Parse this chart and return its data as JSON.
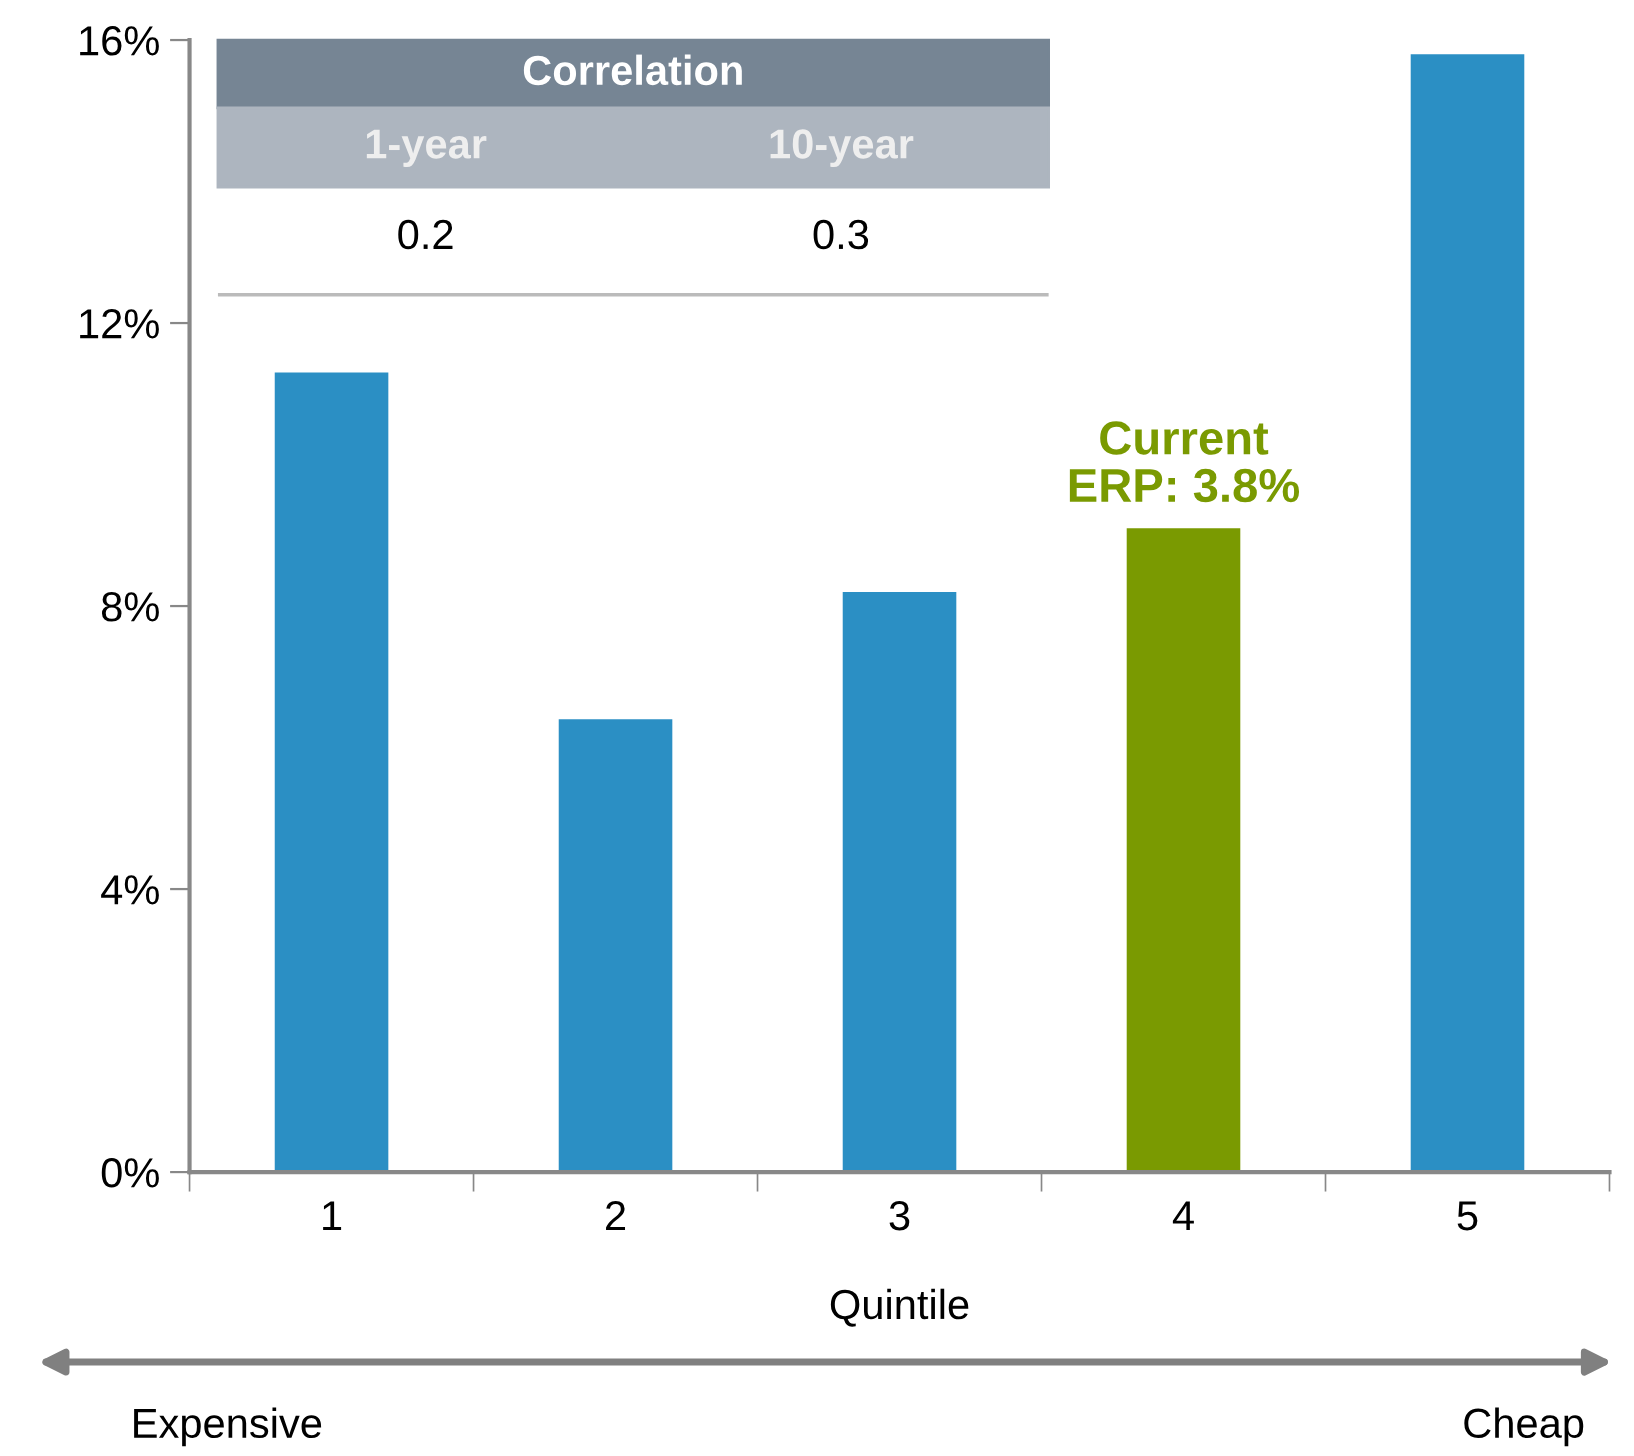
{
  "chart_data": {
    "type": "bar",
    "xlabel": "Quintile",
    "categories": [
      "1",
      "2",
      "3",
      "4",
      "5"
    ],
    "values": [
      11.3,
      6.4,
      8.2,
      9.1,
      15.8
    ],
    "colors": [
      "#2b8fc4",
      "#2b8fc4",
      "#2b8fc4",
      "#7a9a01",
      "#2b8fc4"
    ],
    "ylim": [
      0,
      16
    ],
    "yticks": [
      {
        "value": 0,
        "label": "0%"
      },
      {
        "value": 4,
        "label": "4%"
      },
      {
        "value": 8,
        "label": "8%"
      },
      {
        "value": 12,
        "label": "12%"
      },
      {
        "value": 16,
        "label": "16%"
      }
    ],
    "grid": false,
    "legend": false,
    "annotations": [
      "Correlation",
      "1-year",
      "10-year",
      "0.2",
      "0.3",
      "Expensive",
      "Cheap",
      {
        "text": "Current\nERP: 3.8%",
        "x": "4",
        "y": 9.1
      }
    ]
  }
}
